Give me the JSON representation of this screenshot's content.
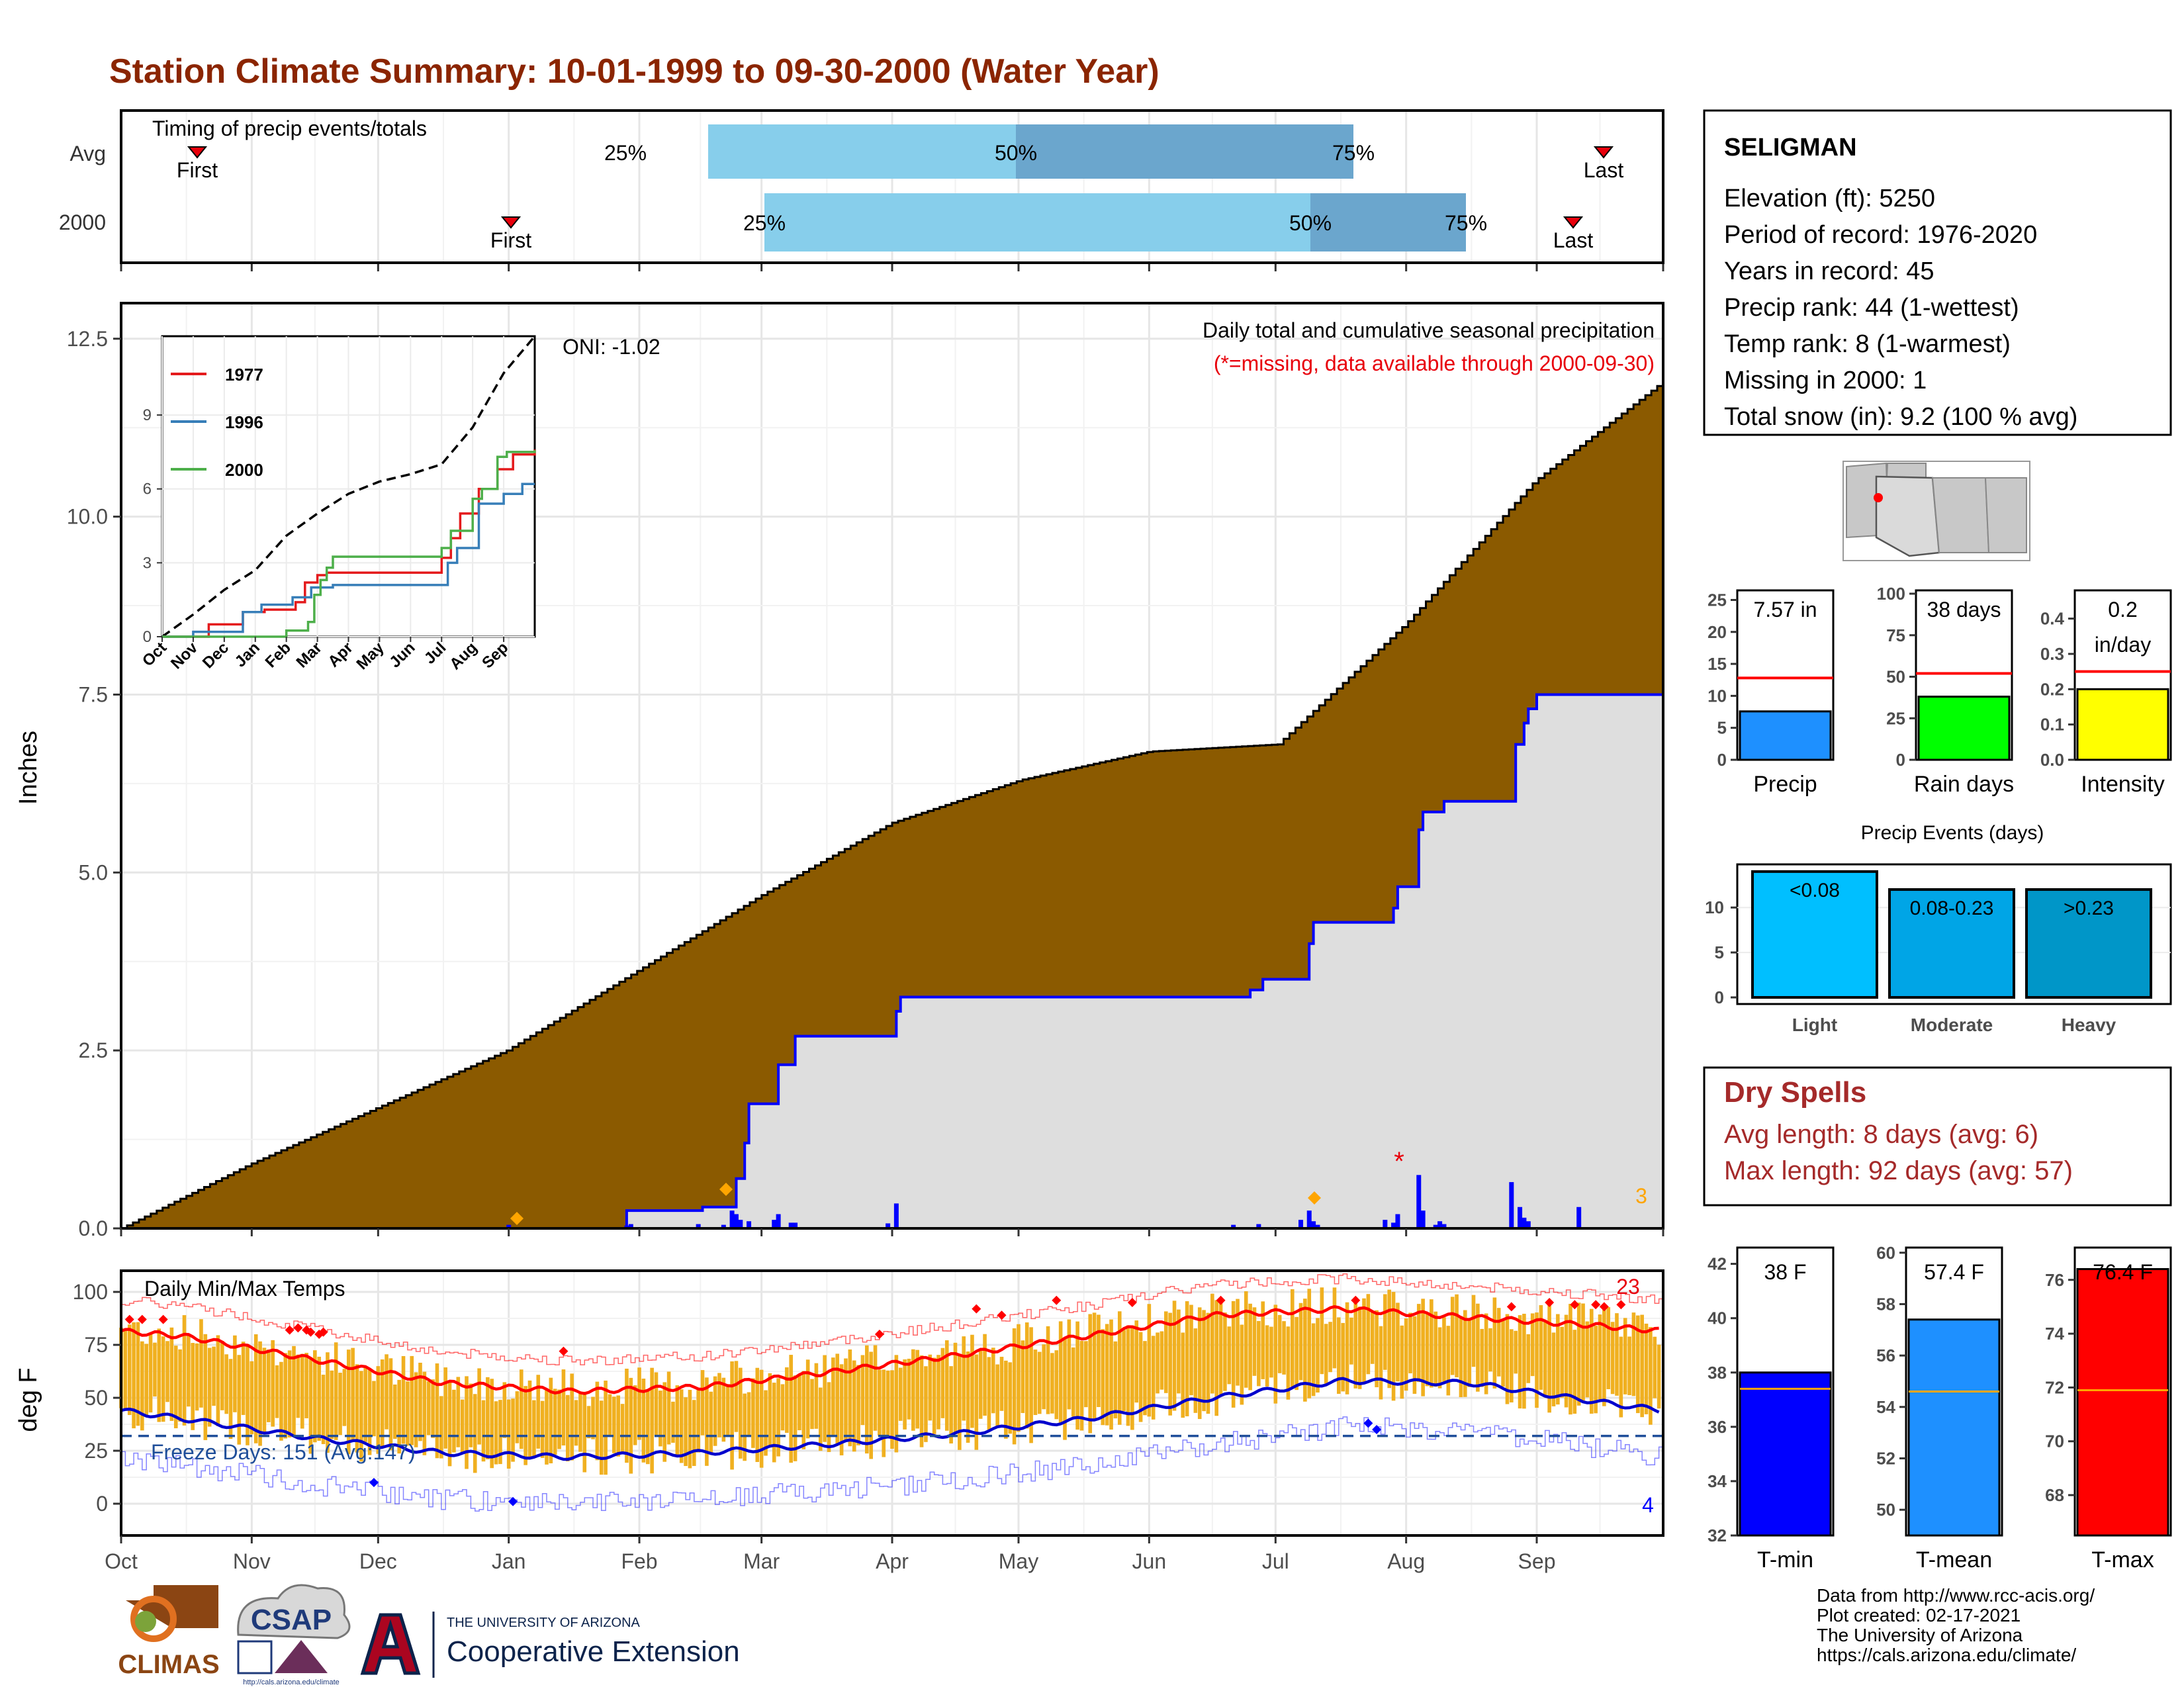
{
  "title": "Station Climate Summary: 10-01-1999 to 09-30-2000 (Water Year)",
  "colors": {
    "title": "#8B2500",
    "precip_fill": "#8B5A00",
    "gray_fill": "#DEDEDE",
    "blue_line": "#0000FF",
    "light_bar": "#87CEEB",
    "dark_bar": "#6BA6CD",
    "temp_bar": "#F0B020",
    "tmax_line": "#FF0000",
    "tmin_line": "#0000CC",
    "dry_red": "#A52A2A",
    "orange": "#FFA500"
  },
  "timing": {
    "title": "Timing of precip events/totals",
    "rows": [
      {
        "label": "Avg",
        "first_label": "First",
        "last_label": "Last",
        "p25": "25%",
        "p50": "50%",
        "p75": "75%"
      },
      {
        "label": "2000",
        "first_label": "First",
        "last_label": "Last",
        "p25": "25%",
        "p50": "50%",
        "p75": "75%"
      }
    ]
  },
  "main": {
    "title": "Daily total and cumulative seasonal precipitation",
    "subtitle": "(*=missing, data available through 2000-09-30)",
    "oni": "ONI: -1.02",
    "ylabel": "Inches",
    "yticks": [
      "0.0",
      "2.5",
      "5.0",
      "7.5",
      "10.0",
      "12.5"
    ],
    "corner_count": "3"
  },
  "inset": {
    "yticks": [
      "0",
      "3",
      "6",
      "9"
    ],
    "xticks": [
      "Oct",
      "Nov",
      "Dec",
      "Jan",
      "Feb",
      "Mar",
      "Apr",
      "May",
      "Jun",
      "Jul",
      "Aug",
      "Sep"
    ],
    "legend": [
      {
        "name": "1977",
        "color": "#E41A1C"
      },
      {
        "name": "1996",
        "color": "#377EB8"
      },
      {
        "name": "2000",
        "color": "#4DAF4A"
      }
    ]
  },
  "temps": {
    "title": "Daily Min/Max Temps",
    "ylabel": "deg F",
    "yticks": [
      "0",
      "25",
      "50",
      "75",
      "100"
    ],
    "freeze_label": "Freeze Days: 151 (Avg:147)",
    "high_count": "23",
    "low_count": "4"
  },
  "months": [
    "Oct",
    "Nov",
    "Dec",
    "Jan",
    "Feb",
    "Mar",
    "Apr",
    "May",
    "Jun",
    "Jul",
    "Aug",
    "Sep"
  ],
  "station": {
    "name": "SELIGMAN",
    "lines": [
      "Elevation (ft): 5250",
      "Period of record: 1976-2020",
      "Years in record: 45",
      "Precip rank: 44 (1-wettest)",
      "Temp rank: 8 (1-warmest)",
      "Missing in 2000: 1",
      "Total snow (in): 9.2 (100 % avg)"
    ]
  },
  "mini_charts": {
    "precip": {
      "label": "Precip",
      "value_text": "7.57 in",
      "yticks": [
        "0",
        "5",
        "10",
        "15",
        "20",
        "25"
      ]
    },
    "rain_days": {
      "label": "Rain days",
      "value_text": "38 days",
      "yticks": [
        "0",
        "25",
        "50",
        "75",
        "100"
      ]
    },
    "intensity": {
      "label": "Intensity",
      "value_text_1": "0.2",
      "value_text_2": "in/day",
      "yticks": [
        "0.0",
        "0.1",
        "0.2",
        "0.3",
        "0.4"
      ]
    }
  },
  "events": {
    "title": "Precip Events (days)",
    "yticks": [
      "0",
      "5",
      "10"
    ],
    "bars": [
      {
        "label": "Light",
        "bin": "<0.08",
        "color": "#00BFFF"
      },
      {
        "label": "Moderate",
        "bin": "0.08-0.23",
        "color": "#00A5E6"
      },
      {
        "label": "Heavy",
        "bin": ">0.23",
        "color": "#0096C8"
      }
    ]
  },
  "dry_spells": {
    "title": "Dry Spells",
    "avg": "Avg length: 8 days (avg: 6)",
    "max": "Max length: 92 days (avg: 57)"
  },
  "temp_summary": [
    {
      "label": "T-min",
      "value_text": "38 F",
      "yticks": [
        "32",
        "34",
        "36",
        "38",
        "40",
        "42"
      ],
      "color": "#0000FF"
    },
    {
      "label": "T-mean",
      "value_text": "57.4 F",
      "yticks": [
        "50",
        "52",
        "54",
        "56",
        "58",
        "60"
      ],
      "color": "#1E90FF"
    },
    {
      "label": "T-max",
      "value_text": "76.4 F",
      "yticks": [
        "68",
        "70",
        "72",
        "74",
        "76"
      ],
      "color": "#FF0000"
    }
  ],
  "credits": [
    "Data from http://www.rcc-acis.org/",
    "Plot created: 02-17-2021",
    "The University of Arizona",
    "https://cals.arizona.edu/climate/"
  ],
  "logos": {
    "climas": "CLIMAS",
    "csap": "CSAP",
    "csap_url": "http://cals.arizona.edu/climate",
    "ua_small": "THE UNIVERSITY OF ARIZONA",
    "ua_big": "Cooperative Extension"
  },
  "chart_data": {
    "type": "area",
    "x_unit": "month of water year (Oct 1999 - Sep 2000)",
    "cumulative_avg_precip": {
      "x": [
        "Oct",
        "Nov",
        "Dec",
        "Jan",
        "Feb",
        "Mar",
        "Apr",
        "May",
        "Jun",
        "Jul",
        "Aug",
        "Sep",
        "Sep 30"
      ],
      "values": [
        0.0,
        0.9,
        1.7,
        2.5,
        3.6,
        4.7,
        5.7,
        6.3,
        6.7,
        6.8,
        8.5,
        10.5,
        11.9
      ]
    },
    "cumulative_2000_precip": {
      "x": [
        "Oct",
        "Nov",
        "Dec",
        "Jan",
        "Feb",
        "Mar",
        "Apr",
        "May",
        "Jun",
        "Jul",
        "Aug",
        "Sep",
        "Sep 30"
      ],
      "values": [
        0.0,
        0.0,
        0.0,
        0.25,
        0.25,
        2.7,
        3.25,
        3.25,
        3.25,
        4.3,
        5.7,
        7.5,
        7.57
      ]
    },
    "ylim": [
      0,
      13
    ],
    "temps": {
      "ylim": [
        -15,
        110
      ],
      "freeze_line": 32,
      "months": [
        "Oct",
        "Nov",
        "Dec",
        "Jan",
        "Feb",
        "Mar",
        "Apr",
        "May",
        "Jun",
        "Jul",
        "Aug",
        "Sep"
      ],
      "avg_tmax": [
        79,
        68,
        57,
        53,
        55,
        62,
        70,
        79,
        89,
        92,
        88,
        84
      ],
      "avg_tmin": [
        40,
        31,
        24,
        22,
        24,
        28,
        33,
        40,
        50,
        58,
        57,
        48
      ]
    },
    "mini_bars": {
      "precip_in": 7.57,
      "precip_avg_in": 12.8,
      "rain_days": 38,
      "rain_days_avg": 52,
      "intensity_in_per_day": 0.2,
      "intensity_avg": 0.25,
      "events_light": 14,
      "events_moderate": 12,
      "events_heavy": 12,
      "tmin_f": 38,
      "tmin_avg_f": 37.4,
      "tmean_f": 57.4,
      "tmean_avg_f": 54.6,
      "tmax_f": 76.4,
      "tmax_avg_f": 71.9
    }
  }
}
